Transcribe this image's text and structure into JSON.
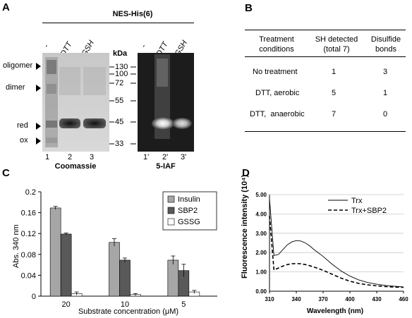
{
  "panels": {
    "A": "A",
    "B": "B",
    "C": "C",
    "D": "D"
  },
  "panelA": {
    "construct": "NES-His(6)",
    "lanes_left": [
      "-",
      "DTT",
      "GSH"
    ],
    "lanes_right": [
      "-",
      "DTT",
      "GSH"
    ],
    "kda_label": "kDa",
    "markers": [
      "130",
      "100",
      "72",
      "55",
      "45",
      "33"
    ],
    "band_labels": [
      "oligomer",
      "dimer",
      "red",
      "ox"
    ],
    "lane_numbers_left": [
      "1",
      "2",
      "3"
    ],
    "lane_numbers_right": [
      "1'",
      "2'",
      "3'"
    ],
    "stain_left": "Coomassie",
    "stain_right": "5-IAF"
  },
  "panelB": {
    "headers": [
      "Treatment conditions",
      "SH detected (total 7)",
      "Disulfide bonds"
    ],
    "rows": [
      [
        "No treatment",
        "1",
        "3"
      ],
      [
        "DTT, aerobic",
        "5",
        "1"
      ],
      [
        "DTT,  anaerobic",
        "7",
        "0"
      ]
    ]
  },
  "chart_data": [
    {
      "type": "bar",
      "panel": "C",
      "categories": [
        "20",
        "10",
        "5"
      ],
      "series": [
        {
          "name": "Insulin",
          "values": [
            0.169,
            0.103,
            0.069
          ],
          "errors": [
            0.003,
            0.007,
            0.008
          ],
          "color": "#a6a6a6"
        },
        {
          "name": "SBP2",
          "values": [
            0.119,
            0.069,
            0.049
          ],
          "errors": [
            0.002,
            0.004,
            0.012
          ],
          "color": "#595959"
        },
        {
          "name": "GSSG",
          "values": [
            0.005,
            0.003,
            0.008
          ],
          "errors": [
            0.003,
            0.002,
            0.003
          ],
          "color": "#ffffff"
        }
      ],
      "xlabel": "Substrate concentration (μM)",
      "ylabel": "Abs. 340 nm",
      "ylim": [
        0,
        0.2
      ],
      "yticks": [
        "0",
        "0.04",
        "0.08",
        "0.12",
        "0.16",
        "0.2"
      ],
      "legend": "top-right"
    },
    {
      "type": "line",
      "panel": "D",
      "x": [
        310,
        315,
        320,
        325,
        330,
        335,
        340,
        345,
        350,
        355,
        360,
        370,
        380,
        390,
        400,
        410,
        420,
        430,
        440,
        450,
        460
      ],
      "series": [
        {
          "name": "Trx",
          "values": [
            4.8,
            1.85,
            1.9,
            2.15,
            2.4,
            2.55,
            2.62,
            2.6,
            2.5,
            2.35,
            2.15,
            1.8,
            1.4,
            1.05,
            0.78,
            0.58,
            0.45,
            0.36,
            0.3,
            0.26,
            0.22
          ],
          "dash": "solid"
        },
        {
          "name": "Trx+SBP2",
          "values": [
            3.9,
            1.1,
            1.2,
            1.3,
            1.38,
            1.42,
            1.43,
            1.42,
            1.38,
            1.32,
            1.25,
            1.08,
            0.88,
            0.68,
            0.52,
            0.4,
            0.33,
            0.28,
            0.24,
            0.21,
            0.2
          ],
          "dash": "dashed"
        }
      ],
      "xlabel": "Wavelength (nm)",
      "ylabel": "Fluorescence intensity (10⁴)",
      "xlim": [
        310,
        460
      ],
      "ylim": [
        0,
        5
      ],
      "xticks": [
        "310",
        "340",
        "370",
        "400",
        "430",
        "460"
      ],
      "yticks": [
        "0.00",
        "1.00",
        "2.00",
        "3.00",
        "4.00",
        "5.00"
      ],
      "legend": "top-right"
    }
  ]
}
